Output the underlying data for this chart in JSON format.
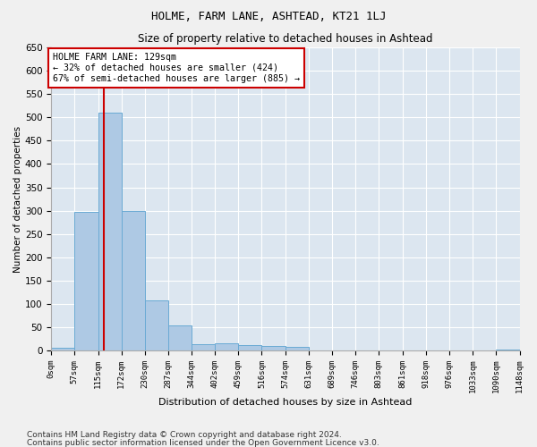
{
  "title": "HOLME, FARM LANE, ASHTEAD, KT21 1LJ",
  "subtitle": "Size of property relative to detached houses in Ashtead",
  "xlabel": "Distribution of detached houses by size in Ashtead",
  "ylabel": "Number of detached properties",
  "footnote1": "Contains HM Land Registry data © Crown copyright and database right 2024.",
  "footnote2": "Contains public sector information licensed under the Open Government Licence v3.0.",
  "bin_edges": [
    0,
    57,
    115,
    172,
    230,
    287,
    344,
    402,
    459,
    516,
    574,
    631,
    689,
    746,
    803,
    861,
    918,
    976,
    1033,
    1090,
    1148
  ],
  "bar_heights": [
    5,
    298,
    510,
    300,
    107,
    53,
    13,
    15,
    12,
    9,
    8,
    0,
    0,
    0,
    0,
    0,
    0,
    0,
    0,
    3
  ],
  "bar_color": "#aec9e4",
  "bar_edge_color": "#6aaad4",
  "property_size": 129,
  "property_line_color": "#cc0000",
  "annotation_line1": "HOLME FARM LANE: 129sqm",
  "annotation_line2": "← 32% of detached houses are smaller (424)",
  "annotation_line3": "67% of semi-detached houses are larger (885) →",
  "annotation_box_color": "#ffffff",
  "annotation_box_edge_color": "#cc0000",
  "ylim": [
    0,
    650
  ],
  "yticks": [
    0,
    50,
    100,
    150,
    200,
    250,
    300,
    350,
    400,
    450,
    500,
    550,
    600,
    650
  ],
  "background_color": "#dce6f0",
  "fig_background_color": "#f0f0f0",
  "grid_color": "#ffffff",
  "title_fontsize": 9,
  "subtitle_fontsize": 8.5,
  "xlabel_fontsize": 8,
  "ylabel_fontsize": 7.5,
  "xtick_fontsize": 6.5,
  "ytick_fontsize": 7.5,
  "footnote_fontsize": 6.5
}
